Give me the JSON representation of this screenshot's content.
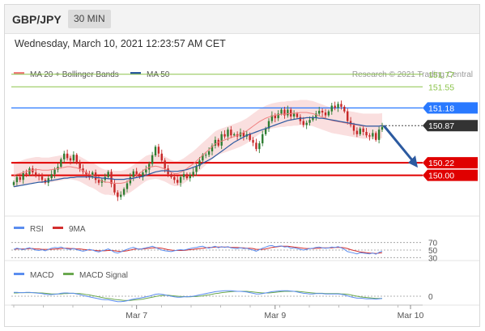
{
  "header": {
    "pair": "GBP/JPY",
    "timeframe": "30 MIN",
    "date": "Wednesday, March 10, 2021 12:23:57 AM CET"
  },
  "colors": {
    "ma20": "#f08080",
    "ma50": "#2c5aa0",
    "bollinger_fill": "#f7c9c9",
    "bull_candle": "#2e7d32",
    "bear_candle": "#c62828",
    "resistance_green": "#8bc34a",
    "level_blue": "#2979ff",
    "support_red": "#e00000",
    "rsi": "#5b8def",
    "rsi_ma": "#d32f2f",
    "macd": "#5b8def",
    "macd_signal": "#6aa84f",
    "arrow": "#2c5aa0"
  },
  "chart_data": [
    {
      "type": "candlestick",
      "legend": [
        {
          "name": "MA 20 + Bollinger Bands",
          "color": "#f08080"
        },
        {
          "name": "MA 50",
          "color": "#2c5aa0"
        }
      ],
      "credit": "Research © 2021 Trading Central",
      "legend_position": "top",
      "ylim": [
        149.3,
        152.05
      ],
      "x_ticks": [
        {
          "label": "Mar 7",
          "index": 39
        },
        {
          "label": "Mar 9",
          "index": 83
        },
        {
          "label": "Mar 10",
          "index": 126
        }
      ],
      "levels": [
        {
          "value": 151.77,
          "label": "151.77",
          "style": "green-line"
        },
        {
          "value": 151.55,
          "label": "151.55",
          "style": "green-line"
        },
        {
          "value": 151.18,
          "label": "151.18",
          "style": "blue-tag"
        },
        {
          "value": 150.87,
          "label": "150.87",
          "style": "current-dotted"
        },
        {
          "value": 150.22,
          "label": "150.22",
          "style": "red-tag"
        },
        {
          "value": 150.0,
          "label": "150.00",
          "style": "red-tag"
        }
      ],
      "candle_closes": [
        149.88,
        149.97,
        149.92,
        150.04,
        150.02,
        150.12,
        150.05,
        150.0,
        149.98,
        149.92,
        149.87,
        149.95,
        150.02,
        150.1,
        150.15,
        150.28,
        150.38,
        150.3,
        150.26,
        150.36,
        150.22,
        150.12,
        150.06,
        150.02,
        149.97,
        150.05,
        149.92,
        149.87,
        149.92,
        149.97,
        150.06,
        149.85,
        149.7,
        149.62,
        149.66,
        149.76,
        149.86,
        149.97,
        150.07,
        150.02,
        149.97,
        150.05,
        150.1,
        150.2,
        150.35,
        150.5,
        150.38,
        150.26,
        150.12,
        150.02,
        149.97,
        149.92,
        149.87,
        149.97,
        150.02,
        149.95,
        150.0,
        150.06,
        150.16,
        150.26,
        150.36,
        150.36,
        150.42,
        150.52,
        150.62,
        150.52,
        150.72,
        150.68,
        150.8,
        150.7,
        150.72,
        150.68,
        150.75,
        150.68,
        150.72,
        150.62,
        150.57,
        150.46,
        150.56,
        150.72,
        150.82,
        150.95,
        151.05,
        151.0,
        151.08,
        151.15,
        151.05,
        151.15,
        151.03,
        151.08,
        151.02,
        150.95,
        150.88,
        150.92,
        150.97,
        151.02,
        151.08,
        151.13,
        151.1,
        151.05,
        151.12,
        151.22,
        151.18,
        151.25,
        151.2,
        151.12,
        150.95,
        150.88,
        150.78,
        150.72,
        150.82,
        150.76,
        150.7,
        150.68,
        150.74,
        150.62,
        150.8,
        150.85
      ],
      "ma20": [
        150.0,
        150.02,
        150.03,
        150.05,
        150.07,
        150.08,
        150.09,
        150.1,
        150.1,
        150.09,
        150.09,
        150.09,
        150.1,
        150.11,
        150.12,
        150.13,
        150.14,
        150.15,
        150.15,
        150.14,
        150.13,
        150.11,
        150.08,
        150.05,
        150.02,
        150.0,
        149.97,
        149.93,
        149.9,
        149.88,
        149.88,
        149.87,
        149.86,
        149.86,
        149.86,
        149.87,
        149.89,
        149.92,
        149.96,
        150.0,
        150.04,
        150.08,
        150.12,
        150.14,
        150.15,
        150.16,
        150.15,
        150.13,
        150.11,
        150.08,
        150.05,
        150.03,
        150.03,
        150.05,
        150.08,
        150.12,
        150.16,
        150.2,
        150.25,
        150.3,
        150.35,
        150.4,
        150.45,
        150.5,
        150.55,
        150.58,
        150.6,
        150.62,
        150.64,
        150.66,
        150.68,
        150.7,
        150.72,
        150.75,
        150.78,
        150.82,
        150.86,
        150.9,
        150.94,
        150.97,
        151.0,
        151.02,
        151.04,
        151.05,
        151.06,
        151.07,
        151.07,
        151.08,
        151.08,
        151.09,
        151.09,
        151.1,
        151.1,
        151.1,
        151.09,
        151.08,
        151.06,
        151.04,
        151.02,
        151.0,
        150.98,
        150.96,
        150.95,
        150.94,
        150.93,
        150.92,
        150.91,
        150.9,
        150.89,
        150.88,
        150.87,
        150.86,
        150.86,
        150.86,
        150.86,
        150.86,
        150.86,
        150.87
      ],
      "ma50": [
        149.8,
        149.81,
        149.82,
        149.83,
        149.84,
        149.85,
        149.86,
        149.87,
        149.88,
        149.88,
        149.89,
        149.9,
        149.91,
        149.92,
        149.93,
        149.94,
        149.95,
        149.95,
        149.96,
        149.96,
        149.97,
        149.97,
        149.97,
        149.97,
        149.97,
        149.97,
        149.96,
        149.96,
        149.95,
        149.95,
        149.94,
        149.94,
        149.93,
        149.93,
        149.93,
        149.93,
        149.94,
        149.94,
        149.95,
        149.96,
        149.97,
        149.98,
        150.0,
        150.02,
        150.04,
        150.06,
        150.07,
        150.08,
        150.08,
        150.08,
        150.07,
        150.07,
        150.07,
        150.08,
        150.09,
        150.1,
        150.12,
        150.14,
        150.16,
        150.18,
        150.21,
        150.24,
        150.27,
        150.3,
        150.34,
        150.38,
        150.42,
        150.46,
        150.5,
        150.54,
        150.58,
        150.61,
        150.64,
        150.67,
        150.7,
        150.72,
        150.74,
        150.76,
        150.78,
        150.8,
        150.82,
        150.84,
        150.86,
        150.88,
        150.9,
        150.92,
        150.94,
        150.96,
        150.97,
        150.98,
        150.99,
        151.0,
        151.0,
        151.01,
        151.01,
        151.01,
        151.01,
        151.0,
        151.0,
        150.99,
        150.98,
        150.97,
        150.96,
        150.95,
        150.94,
        150.93,
        150.92,
        150.91,
        150.9,
        150.89,
        150.88,
        150.87,
        150.86,
        150.86,
        150.86,
        150.86,
        150.86,
        150.87
      ],
      "forecast": {
        "from": 150.87,
        "to": 150.22
      }
    },
    {
      "type": "line",
      "legend": [
        {
          "name": "RSI",
          "color": "#5b8def"
        },
        {
          "name": "9MA",
          "color": "#d32f2f"
        }
      ],
      "y_ticks": [
        70,
        50,
        30
      ],
      "ylim": [
        20,
        80
      ],
      "rsi": [
        52,
        55,
        53,
        51,
        54,
        56,
        53,
        50,
        49,
        51,
        48,
        52,
        55,
        57,
        56,
        58,
        55,
        53,
        52,
        54,
        51,
        49,
        47,
        49,
        52,
        50,
        47,
        45,
        48,
        50,
        53,
        49,
        44,
        42,
        45,
        49,
        52,
        55,
        57,
        54,
        52,
        54,
        56,
        58,
        60,
        57,
        53,
        50,
        48,
        47,
        46,
        48,
        50,
        51,
        50,
        52,
        54,
        56,
        57,
        59,
        60,
        57,
        55,
        58,
        60,
        56,
        59,
        57,
        59,
        56,
        55,
        54,
        56,
        54,
        55,
        52,
        50,
        47,
        51,
        55,
        58,
        61,
        62,
        59,
        60,
        61,
        58,
        59,
        55,
        56,
        54,
        52,
        50,
        52,
        54,
        55,
        57,
        58,
        56,
        55,
        56,
        58,
        57,
        59,
        56,
        52,
        46,
        44,
        42,
        40,
        43,
        42,
        41,
        40,
        42,
        39,
        44,
        47
      ],
      "rsi_ma": [
        52,
        53,
        53,
        53,
        53,
        54,
        54,
        53,
        53,
        52,
        52,
        52,
        52,
        53,
        53,
        54,
        55,
        55,
        54,
        54,
        53,
        53,
        52,
        51,
        50,
        50,
        49,
        48,
        48,
        48,
        49,
        49,
        48,
        47,
        46,
        47,
        48,
        50,
        52,
        53,
        53,
        53,
        54,
        55,
        56,
        56,
        56,
        55,
        53,
        51,
        50,
        49,
        49,
        49,
        49,
        50,
        51,
        52,
        53,
        54,
        55,
        56,
        57,
        57,
        58,
        58,
        58,
        58,
        58,
        57,
        57,
        57,
        56,
        56,
        55,
        55,
        54,
        52,
        52,
        52,
        53,
        55,
        57,
        58,
        59,
        60,
        60,
        60,
        59,
        58,
        57,
        56,
        55,
        54,
        54,
        54,
        55,
        55,
        56,
        56,
        56,
        56,
        57,
        57,
        57,
        56,
        54,
        51,
        49,
        47,
        45,
        44,
        43,
        42,
        42,
        41,
        42,
        43
      ]
    },
    {
      "type": "line",
      "legend": [
        {
          "name": "MACD",
          "color": "#5b8def"
        },
        {
          "name": "MACD Signal",
          "color": "#6aa84f"
        }
      ],
      "y_ticks": [
        0
      ],
      "ylim": [
        -0.4,
        0.4
      ],
      "macd": [
        0.12,
        0.12,
        0.11,
        0.11,
        0.12,
        0.12,
        0.11,
        0.1,
        0.09,
        0.08,
        0.06,
        0.05,
        0.05,
        0.06,
        0.07,
        0.09,
        0.1,
        0.1,
        0.09,
        0.09,
        0.07,
        0.05,
        0.02,
        0.0,
        -0.02,
        -0.04,
        -0.06,
        -0.08,
        -0.1,
        -0.11,
        -0.11,
        -0.13,
        -0.15,
        -0.17,
        -0.17,
        -0.16,
        -0.14,
        -0.11,
        -0.09,
        -0.07,
        -0.06,
        -0.04,
        -0.02,
        0.0,
        0.03,
        0.06,
        0.07,
        0.06,
        0.04,
        0.02,
        0.0,
        -0.02,
        -0.03,
        -0.03,
        -0.02,
        -0.02,
        -0.01,
        0.0,
        0.02,
        0.04,
        0.06,
        0.08,
        0.1,
        0.12,
        0.14,
        0.15,
        0.16,
        0.17,
        0.17,
        0.17,
        0.16,
        0.15,
        0.15,
        0.14,
        0.13,
        0.11,
        0.09,
        0.07,
        0.07,
        0.08,
        0.1,
        0.12,
        0.14,
        0.15,
        0.16,
        0.17,
        0.17,
        0.17,
        0.16,
        0.15,
        0.13,
        0.11,
        0.09,
        0.08,
        0.07,
        0.07,
        0.08,
        0.08,
        0.08,
        0.07,
        0.07,
        0.07,
        0.07,
        0.07,
        0.06,
        0.04,
        0.01,
        -0.02,
        -0.04,
        -0.06,
        -0.06,
        -0.07,
        -0.08,
        -0.08,
        -0.08,
        -0.09,
        -0.08,
        -0.07
      ],
      "macd_signal": [
        0.1,
        0.1,
        0.11,
        0.11,
        0.11,
        0.11,
        0.11,
        0.11,
        0.1,
        0.1,
        0.09,
        0.08,
        0.07,
        0.07,
        0.07,
        0.07,
        0.08,
        0.08,
        0.09,
        0.09,
        0.08,
        0.08,
        0.07,
        0.05,
        0.04,
        0.02,
        0.0,
        -0.02,
        -0.04,
        -0.06,
        -0.07,
        -0.08,
        -0.1,
        -0.11,
        -0.12,
        -0.13,
        -0.13,
        -0.13,
        -0.12,
        -0.11,
        -0.1,
        -0.09,
        -0.07,
        -0.05,
        -0.03,
        -0.01,
        0.01,
        0.02,
        0.03,
        0.03,
        0.02,
        0.01,
        0.0,
        -0.01,
        -0.01,
        -0.02,
        -0.02,
        -0.01,
        -0.01,
        0.0,
        0.01,
        0.03,
        0.04,
        0.06,
        0.08,
        0.09,
        0.11,
        0.12,
        0.13,
        0.14,
        0.15,
        0.15,
        0.15,
        0.15,
        0.15,
        0.14,
        0.13,
        0.12,
        0.11,
        0.1,
        0.1,
        0.1,
        0.11,
        0.12,
        0.13,
        0.14,
        0.15,
        0.15,
        0.15,
        0.15,
        0.15,
        0.14,
        0.13,
        0.12,
        0.11,
        0.1,
        0.09,
        0.09,
        0.09,
        0.08,
        0.08,
        0.08,
        0.08,
        0.08,
        0.07,
        0.07,
        0.06,
        0.04,
        0.02,
        0.0,
        -0.02,
        -0.03,
        -0.04,
        -0.05,
        -0.06,
        -0.07,
        -0.07,
        -0.07
      ]
    }
  ]
}
